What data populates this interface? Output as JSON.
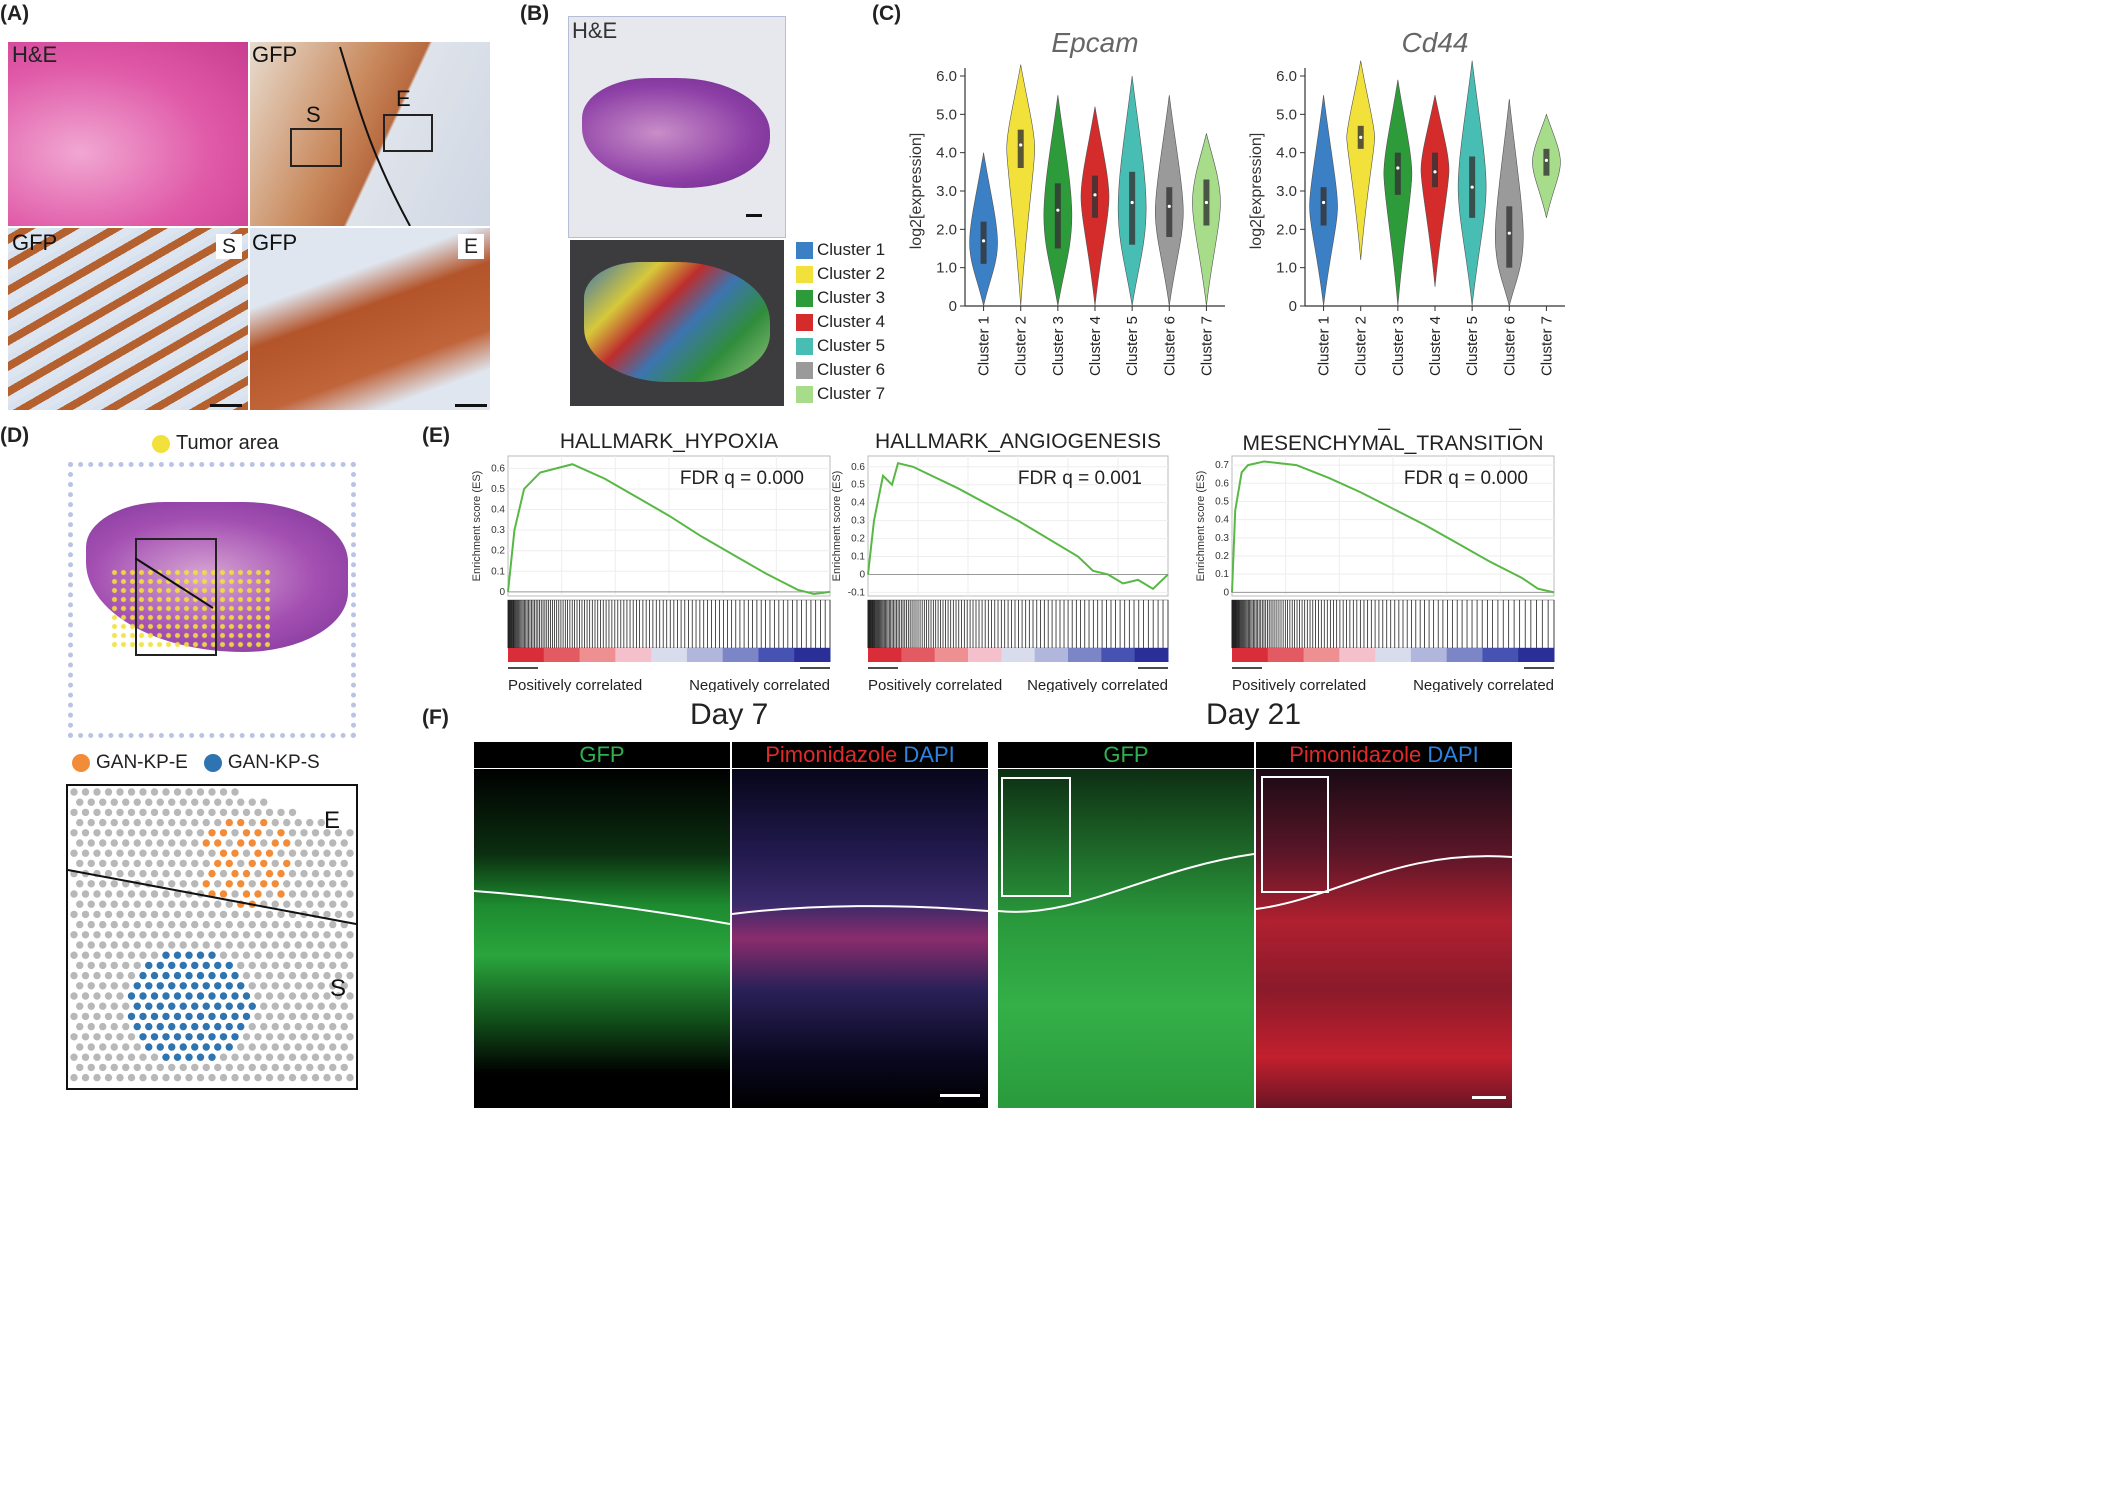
{
  "panel_labels": {
    "a": "(A)",
    "b": "(B)",
    "c": "(C)",
    "d": "(D)",
    "e": "(E)",
    "f": "(F)"
  },
  "panel_a": {
    "top_left": "H&E",
    "top_right": "GFP",
    "region_s": "S",
    "region_e": "E",
    "bottom_left": "GFP",
    "bottom_left_tag": "S",
    "bottom_right": "GFP",
    "bottom_right_tag": "E"
  },
  "panel_b": {
    "he_label": "H&E"
  },
  "clusters": [
    {
      "label": "Cluster 1",
      "color": "#3b7fc4"
    },
    {
      "label": "Cluster 2",
      "color": "#f2e13a"
    },
    {
      "label": "Cluster 3",
      "color": "#2e9b3a"
    },
    {
      "label": "Cluster 4",
      "color": "#d42b2b"
    },
    {
      "label": "Cluster 5",
      "color": "#48bdb4"
    },
    {
      "label": "Cluster 6",
      "color": "#9a9a9a"
    },
    {
      "label": "Cluster 7",
      "color": "#a6dc8a"
    }
  ],
  "panel_d": {
    "tumor_label": "Tumor area",
    "legend_e": "GAN-KP-E",
    "legend_s": "GAN-KP-S",
    "region_e": "E",
    "region_s": "S"
  },
  "panel_f": {
    "day7": "Day 7",
    "day21": "Day 21",
    "gfp": "GFP",
    "pimo": "Pimonidazole",
    "dapi": "DAPI"
  },
  "chart_data": [
    {
      "type": "violin",
      "title": "Epcam",
      "ylabel": "log2[expression]",
      "ylim": [
        0,
        6.0
      ],
      "yticks": [
        "0",
        "1.0",
        "2.0",
        "3.0",
        "4.0",
        "5.0",
        "6.0"
      ],
      "categories": [
        "Cluster 1",
        "Cluster 2",
        "Cluster 3",
        "Cluster 4",
        "Cluster 5",
        "Cluster 6",
        "Cluster 7"
      ],
      "medians": [
        1.7,
        4.2,
        2.5,
        2.9,
        2.7,
        2.6,
        2.7
      ],
      "q1": [
        1.1,
        3.6,
        1.5,
        2.3,
        1.6,
        1.8,
        2.1
      ],
      "q3": [
        2.2,
        4.6,
        3.2,
        3.4,
        3.5,
        3.1,
        3.3
      ],
      "max": [
        4.0,
        6.3,
        5.5,
        5.2,
        6.0,
        5.5,
        4.5
      ],
      "min": [
        0,
        0,
        0,
        0,
        0,
        0,
        0
      ]
    },
    {
      "type": "violin",
      "title": "Cd44",
      "ylabel": "log2[expression]",
      "ylim": [
        0,
        6.0
      ],
      "yticks": [
        "0",
        "1.0",
        "2.0",
        "3.0",
        "4.0",
        "5.0",
        "6.0"
      ],
      "categories": [
        "Cluster 1",
        "Cluster 2",
        "Cluster 3",
        "Cluster 4",
        "Cluster 5",
        "Cluster 6",
        "Cluster 7"
      ],
      "medians": [
        2.7,
        4.4,
        3.6,
        3.5,
        3.1,
        1.9,
        3.8
      ],
      "q1": [
        2.1,
        4.1,
        2.9,
        3.1,
        2.3,
        1.0,
        3.4
      ],
      "q3": [
        3.1,
        4.7,
        4.0,
        4.0,
        3.9,
        2.6,
        4.1
      ],
      "max": [
        5.5,
        6.4,
        5.9,
        5.5,
        6.4,
        5.4,
        5.0
      ],
      "min": [
        0,
        1.2,
        0,
        0.5,
        0,
        0,
        2.3
      ]
    },
    {
      "type": "line",
      "title": "HALLMARK_HYPOXIA",
      "ylabel": "Enrichment score (ES)",
      "annotation": "FDR q = 0.000",
      "ylim": [
        -0.02,
        0.66
      ],
      "yticks": [
        "0",
        "0.1",
        "0.2",
        "0.3",
        "0.4",
        "0.5",
        "0.6"
      ],
      "x": [
        0,
        0.02,
        0.05,
        0.1,
        0.15,
        0.2,
        0.3,
        0.4,
        0.5,
        0.6,
        0.7,
        0.8,
        0.85,
        0.9,
        0.95,
        1.0
      ],
      "y": [
        0,
        0.3,
        0.5,
        0.58,
        0.6,
        0.62,
        0.55,
        0.46,
        0.37,
        0.27,
        0.18,
        0.09,
        0.05,
        0.01,
        -0.01,
        0.0
      ],
      "xlabel_left": "Positively correlated",
      "xlabel_right": "Negatively correlated"
    },
    {
      "type": "line",
      "title": "HALLMARK_ANGIOGENESIS",
      "ylabel": "Enrichment score (ES)",
      "annotation": "FDR q = 0.001",
      "ylim": [
        -0.12,
        0.66
      ],
      "yticks": [
        "-0.1",
        "0",
        "0.1",
        "0.2",
        "0.3",
        "0.4",
        "0.5",
        "0.6"
      ],
      "x": [
        0,
        0.02,
        0.05,
        0.08,
        0.1,
        0.15,
        0.3,
        0.5,
        0.7,
        0.75,
        0.8,
        0.85,
        0.9,
        0.95,
        1.0
      ],
      "y": [
        0,
        0.3,
        0.55,
        0.5,
        0.62,
        0.6,
        0.48,
        0.3,
        0.1,
        0.02,
        0.0,
        -0.05,
        -0.03,
        -0.08,
        0.0
      ],
      "xlabel_left": "Positively correlated",
      "xlabel_right": "Negatively correlated"
    },
    {
      "type": "line",
      "title": "HALLMARK_EPITHELIAL_ MESENCHYMAL_TRANSITION",
      "ylabel": "Enrichment score (ES)",
      "annotation": "FDR q = 0.000",
      "ylim": [
        -0.02,
        0.75
      ],
      "yticks": [
        "0",
        "0.1",
        "0.2",
        "0.3",
        "0.4",
        "0.5",
        "0.6",
        "0.7"
      ],
      "x": [
        0,
        0.01,
        0.03,
        0.05,
        0.1,
        0.2,
        0.3,
        0.4,
        0.5,
        0.6,
        0.7,
        0.8,
        0.9,
        0.95,
        1.0
      ],
      "y": [
        0,
        0.45,
        0.66,
        0.7,
        0.72,
        0.7,
        0.63,
        0.55,
        0.46,
        0.37,
        0.27,
        0.17,
        0.08,
        0.02,
        0.0
      ],
      "xlabel_left": "Positively correlated",
      "xlabel_right": "Negatively correlated"
    }
  ]
}
